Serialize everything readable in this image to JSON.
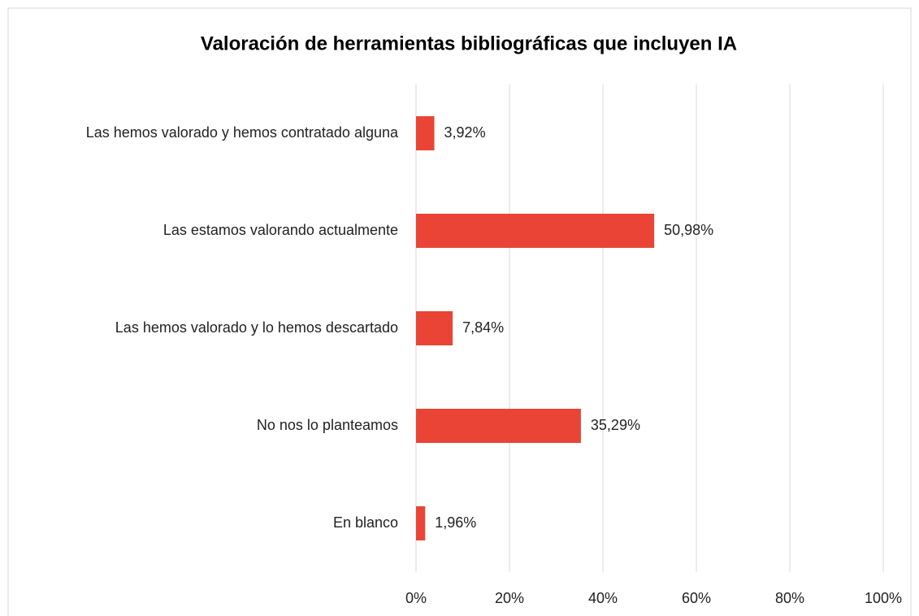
{
  "chart_data": {
    "type": "bar",
    "orientation": "horizontal",
    "title": "Valoración de herramientas bibliográficas que incluyen IA",
    "categories": [
      "Las hemos valorado y hemos contratado alguna",
      "Las estamos valorando actualmente",
      "Las hemos valorado y lo hemos descartado",
      "No nos lo planteamos",
      "En blanco"
    ],
    "values": [
      3.92,
      50.98,
      7.84,
      35.29,
      1.96
    ],
    "value_labels": [
      "3,92%",
      "50,98%",
      "7,84%",
      "35,29%",
      "1,96%"
    ],
    "color": "#e94436",
    "xlim": [
      0,
      100
    ],
    "xticks": [
      {
        "value": 0,
        "label": "0%"
      },
      {
        "value": 20,
        "label": "20%"
      },
      {
        "value": 40,
        "label": "40%"
      },
      {
        "value": 60,
        "label": "60%"
      },
      {
        "value": 80,
        "label": "80%"
      },
      {
        "value": 100,
        "label": "100%"
      }
    ],
    "grid": true
  }
}
